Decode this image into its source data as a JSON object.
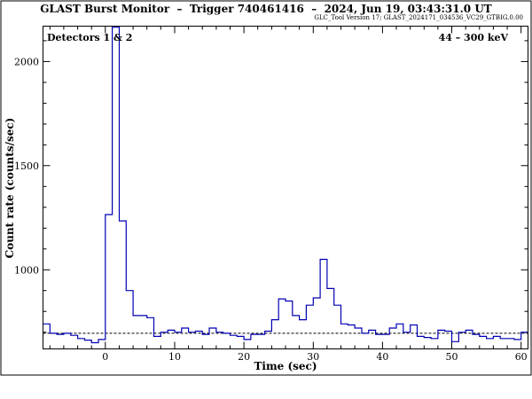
{
  "header": {
    "title": "GLAST Burst Monitor  –  Trigger 740461416  –  2024, Jun 19, 03:43:31.0 UT",
    "version": "GLC_Tool Version 17; GLAST_2024171_034536_VC29_GTBIG.0.00"
  },
  "annotations": {
    "detectors": "Detectors 1 & 2",
    "energy": "44 – 300 keV"
  },
  "colors": {
    "series": "#0000b4",
    "axes": "#000000",
    "background_line": "#000000"
  },
  "chart_data": {
    "type": "line",
    "step": true,
    "xlabel": "Time (sec)",
    "ylabel": "Count rate (counts/sec)",
    "xlim": [
      -9,
      61
    ],
    "ylim": [
      620,
      2170
    ],
    "x_ticks": [
      0,
      10,
      20,
      30,
      40,
      50,
      60
    ],
    "y_ticks": [
      1000,
      1500,
      2000
    ],
    "background_level": 695,
    "bin_edges": [
      -9,
      -8,
      -7,
      -6,
      -5,
      -4,
      -3,
      -2,
      -1,
      0,
      1,
      2,
      3,
      4,
      5,
      6,
      7,
      8,
      9,
      10,
      11,
      12,
      13,
      14,
      15,
      16,
      17,
      18,
      19,
      20,
      21,
      22,
      23,
      24,
      25,
      26,
      27,
      28,
      29,
      30,
      31,
      32,
      33,
      34,
      35,
      36,
      37,
      38,
      39,
      40,
      41,
      42,
      43,
      44,
      45,
      46,
      47,
      48,
      49,
      50,
      51,
      52,
      53,
      54,
      55,
      56,
      57,
      58,
      59,
      60,
      61
    ],
    "values": [
      740,
      695,
      690,
      695,
      685,
      670,
      662,
      650,
      665,
      1265,
      2165,
      1235,
      900,
      780,
      780,
      770,
      680,
      700,
      710,
      700,
      720,
      700,
      705,
      690,
      720,
      700,
      695,
      685,
      680,
      665,
      690,
      690,
      705,
      760,
      860,
      850,
      780,
      760,
      830,
      865,
      1050,
      910,
      830,
      740,
      735,
      720,
      695,
      710,
      690,
      690,
      720,
      740,
      700,
      735,
      680,
      675,
      670,
      710,
      705,
      655,
      700,
      710,
      690,
      680,
      670,
      680,
      670,
      670,
      665,
      700
    ]
  }
}
